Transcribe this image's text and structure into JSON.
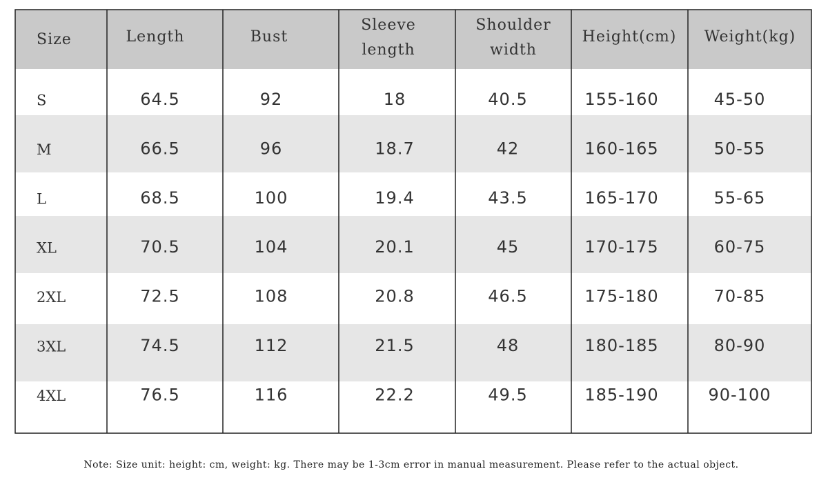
{
  "table": {
    "header": [
      "Size",
      "Length",
      "Bust",
      "Sleeve length",
      "Shoulder width",
      "Height(cm)",
      "Weight(kg)"
    ],
    "rows": [
      [
        "S",
        "64.5",
        "92",
        "18",
        "40.5",
        "155-160",
        "45-50"
      ],
      [
        "M",
        "66.5",
        "96",
        "18.7",
        "42",
        "160-165",
        "50-55"
      ],
      [
        "L",
        "68.5",
        "100",
        "19.4",
        "43.5",
        "165-170",
        "55-65"
      ],
      [
        "XL",
        "70.5",
        "104",
        "20.1",
        "45",
        "170-175",
        "60-75"
      ],
      [
        "2XL",
        "72.5",
        "108",
        "20.8",
        "46.5",
        "175-180",
        "70-85"
      ],
      [
        "3XL",
        "74.5",
        "112",
        "21.5",
        "48",
        "180-185",
        "80-90"
      ],
      [
        "4XL",
        "76.5",
        "116",
        "22.2",
        "49.5",
        "185-190",
        "90-100"
      ]
    ]
  },
  "note": "Note: Size unit: height: cm, weight: kg. There may be 1-3cm error in manual measurement. Please refer to the actual object."
}
